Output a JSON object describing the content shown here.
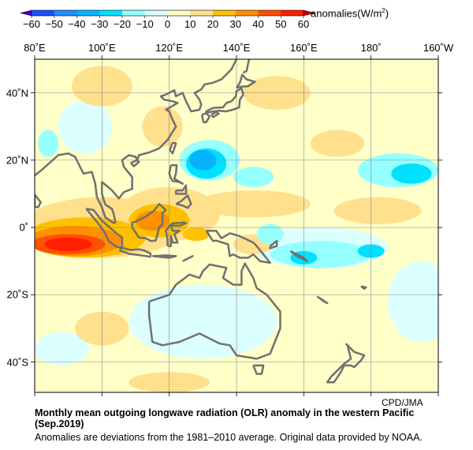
{
  "colorbar": {
    "units_label": "anomalies(W/m",
    "units_sup": "2",
    "units_close": ")",
    "ticks": [
      "−60",
      "−50",
      "−40",
      "−30",
      "−20",
      "−10",
      "0",
      "10",
      "20",
      "30",
      "40",
      "50",
      "60"
    ],
    "colors": [
      "#1e50ff",
      "#1e90ff",
      "#00b4ff",
      "#00e0ff",
      "#96ffff",
      "#dcffff",
      "#ffffc8",
      "#ffe08c",
      "#ffc000",
      "#ff9000",
      "#ff5000",
      "#ff1e00"
    ],
    "under_color": "#3c00c8",
    "over_color": "#c80000"
  },
  "map": {
    "lon_labels": [
      {
        "lon": 80,
        "text": "80˚E"
      },
      {
        "lon": 100,
        "text": "100˚E"
      },
      {
        "lon": 120,
        "text": "120˚E"
      },
      {
        "lon": 140,
        "text": "140˚E"
      },
      {
        "lon": 160,
        "text": "160˚E"
      },
      {
        "lon": 180,
        "text": "180˚"
      },
      {
        "lon": 200,
        "text": "160˚W"
      }
    ],
    "lat_labels": [
      {
        "lat": 40,
        "text": "40˚N"
      },
      {
        "lat": 20,
        "text": "20˚N"
      },
      {
        "lat": 0,
        "text": "0˚"
      },
      {
        "lat": -20,
        "text": "20˚S"
      },
      {
        "lat": -40,
        "text": "40˚S"
      }
    ],
    "lon_range": [
      80,
      200
    ],
    "lat_range": [
      -49,
      50
    ],
    "anomaly_features": [
      {
        "name": "australia-negative",
        "lon": 130,
        "lat": -28,
        "rlon": 22,
        "rlat": 11,
        "value": -5
      },
      {
        "name": "south-pacific-negative",
        "lon": 195,
        "lat": -22,
        "rlon": 10,
        "rlat": 12,
        "value": -5
      },
      {
        "name": "china-negative",
        "lon": 95,
        "lat": 30,
        "rlon": 8,
        "rlat": 8,
        "value": -5
      },
      {
        "name": "south-indian-negative",
        "lon": 88,
        "lat": -36,
        "rlon": 8,
        "rlat": 5,
        "value": -5
      },
      {
        "name": "east-equatorial-negative",
        "lon": 165,
        "lat": -6,
        "rlon": 20,
        "rlat": 6,
        "value": -5
      },
      {
        "name": "maritime-positive",
        "lon": 100,
        "lat": 0,
        "rlon": 24,
        "rlat": 9,
        "value": 15
      },
      {
        "name": "scs-positive",
        "lon": 120,
        "lat": 4,
        "rlon": 15,
        "rlat": 8,
        "value": 15
      },
      {
        "name": "itcz-positive",
        "lon": 145,
        "lat": 7,
        "rlon": 17,
        "rlat": 4,
        "value": 15
      },
      {
        "name": "china-positive",
        "lon": 118,
        "lat": 30,
        "rlon": 6,
        "rlat": 6,
        "value": 15
      },
      {
        "name": "mongolia-positive",
        "lon": 100,
        "lat": 42,
        "rlon": 9,
        "rlat": 6,
        "value": 15
      },
      {
        "name": "nw-pacific-positive",
        "lon": 152,
        "lat": 40,
        "rlon": 10,
        "rlat": 5,
        "value": 15
      },
      {
        "name": "subtropic-positive",
        "lon": 170,
        "lat": 25,
        "rlon": 8,
        "rlat": 4,
        "value": 15
      },
      {
        "name": "central-pacific-positive",
        "lon": 182,
        "lat": 5,
        "rlon": 13,
        "rlat": 4,
        "value": 15
      },
      {
        "name": "png-positive",
        "lon": 145,
        "lat": -5,
        "rlon": 6,
        "rlat": 3,
        "value": 15
      },
      {
        "name": "south-positive",
        "lon": 120,
        "lat": -46,
        "rlon": 12,
        "rlat": 3,
        "value": 15
      },
      {
        "name": "indian-positive",
        "lon": 100,
        "lat": -30,
        "rlon": 8,
        "rlat": 5,
        "value": 15
      },
      {
        "name": "sumatra-positive-25",
        "lon": 95,
        "lat": -3,
        "rlon": 18,
        "rlat": 6,
        "value": 25
      },
      {
        "name": "borneo-positive-25",
        "lon": 117,
        "lat": 2,
        "rlon": 9,
        "rlat": 5,
        "value": 25
      },
      {
        "name": "sulawesi-positive-25",
        "lon": 128,
        "lat": -2,
        "rlon": 4,
        "rlat": 2,
        "value": 25
      },
      {
        "name": "sumatra-positive-35",
        "lon": 92,
        "lat": -4,
        "rlon": 14,
        "rlat": 4.5,
        "value": 35
      },
      {
        "name": "borneo-positive-35",
        "lon": 115,
        "lat": 2,
        "rlon": 5,
        "rlat": 3,
        "value": 35
      },
      {
        "name": "sumatra-positive-45",
        "lon": 90,
        "lat": -5,
        "rlon": 11,
        "rlat": 3,
        "value": 45
      },
      {
        "name": "sumatra-positive-55",
        "lon": 90,
        "lat": -5,
        "rlon": 7,
        "rlat": 2,
        "value": 55
      },
      {
        "name": "philippine-sea-negative-15",
        "lon": 132,
        "lat": 20,
        "rlon": 9,
        "rlat": 6,
        "value": -15
      },
      {
        "name": "hawaii-negative-15",
        "lon": 188,
        "lat": 17,
        "rlon": 12,
        "rlat": 5,
        "value": -15
      },
      {
        "name": "wp-negative-15",
        "lon": 145,
        "lat": 15,
        "rlon": 6,
        "rlat": 3,
        "value": -15
      },
      {
        "name": "bay-negative-15",
        "lon": 84,
        "lat": 25,
        "rlon": 3,
        "rlat": 4,
        "value": -15
      },
      {
        "name": "spcz-negative-15",
        "lon": 165,
        "lat": -8,
        "rlon": 15,
        "rlat": 4,
        "value": -15
      },
      {
        "name": "png-negative-15",
        "lon": 150,
        "lat": -2,
        "rlon": 4,
        "rlat": 3,
        "value": -15
      },
      {
        "name": "philippine-sea-negative-25",
        "lon": 131,
        "lat": 19,
        "rlon": 6,
        "rlat": 4.5,
        "value": -25
      },
      {
        "name": "hawaii-negative-25",
        "lon": 192,
        "lat": 16,
        "rlon": 6,
        "rlat": 3,
        "value": -25
      },
      {
        "name": "spcz-negative-25",
        "lon": 160,
        "lat": -9,
        "rlon": 4,
        "rlat": 2,
        "value": -25
      },
      {
        "name": "dateline-negative-25",
        "lon": 180,
        "lat": -7,
        "rlon": 4,
        "rlat": 2,
        "value": -25
      },
      {
        "name": "philippine-sea-negative-35",
        "lon": 130,
        "lat": 20,
        "rlon": 4,
        "rlat": 3,
        "value": -35
      }
    ],
    "credit": "CPD/JMA"
  },
  "caption": {
    "title": "Monthly mean outgoing longwave radiation (OLR) anomaly in the western Pacific (Sep.2019)",
    "note": "Anomalies are deviations from the 1981–2010 average. Original data provided by NOAA."
  }
}
